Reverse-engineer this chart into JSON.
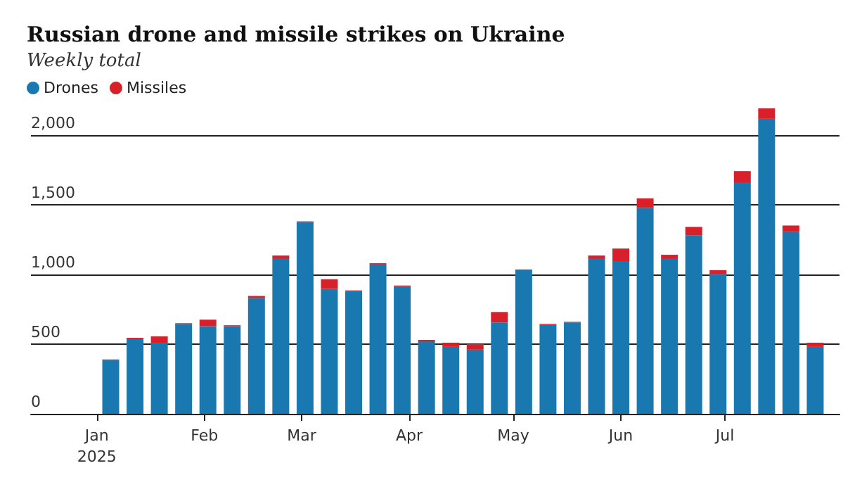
{
  "chart_data": {
    "type": "bar",
    "title": "Russian drone and missile strikes on Ukraine",
    "subtitle": "Weekly total",
    "x": [
      "2025-01-05",
      "2025-01-12",
      "2025-01-19",
      "2025-01-26",
      "2025-02-02",
      "2025-02-09",
      "2025-02-16",
      "2025-02-23",
      "2025-03-02",
      "2025-03-09",
      "2025-03-16",
      "2025-03-23",
      "2025-03-30",
      "2025-04-06",
      "2025-04-13",
      "2025-04-20",
      "2025-04-27",
      "2025-05-04",
      "2025-05-11",
      "2025-05-18",
      "2025-05-25",
      "2025-06-01",
      "2025-06-08",
      "2025-06-15",
      "2025-06-22",
      "2025-06-29",
      "2025-07-06",
      "2025-07-13",
      "2025-07-20",
      "2025-07-27"
    ],
    "stacked": true,
    "series": [
      {
        "name": "Drones",
        "color": "#1a78b0",
        "values": [
          385,
          540,
          505,
          645,
          630,
          630,
          830,
          1115,
          1375,
          895,
          880,
          1075,
          915,
          520,
          480,
          460,
          655,
          1030,
          640,
          655,
          1115,
          1095,
          1475,
          1115,
          1280,
          1000,
          1660,
          2115,
          1305,
          480
        ]
      },
      {
        "name": "Missiles",
        "color": "#d8202a",
        "values": [
          5,
          5,
          50,
          5,
          45,
          5,
          15,
          20,
          5,
          70,
          5,
          5,
          5,
          10,
          30,
          40,
          75,
          5,
          5,
          5,
          20,
          90,
          70,
          25,
          60,
          30,
          80,
          75,
          45,
          30
        ]
      }
    ],
    "xlim": [
      "2024-12-13",
      "2025-08-03"
    ],
    "xticks": [
      {
        "value": "2025-01-01",
        "label": "Jan\n2025"
      },
      {
        "value": "2025-02-01",
        "label": "Feb"
      },
      {
        "value": "2025-03-01",
        "label": "Mar"
      },
      {
        "value": "2025-04-01",
        "label": "Apr"
      },
      {
        "value": "2025-05-01",
        "label": "May"
      },
      {
        "value": "2025-06-01",
        "label": "Jun"
      },
      {
        "value": "2025-07-01",
        "label": "Jul"
      }
    ],
    "ylim": [
      0,
      2200
    ],
    "yticks": [
      0,
      {
        "value": 500,
        "label": "500"
      },
      {
        "value": 1000,
        "label": "1,000"
      },
      {
        "value": 1500,
        "label": "1,500"
      },
      {
        "value": 2000,
        "label": "2,000"
      }
    ],
    "grid": "y",
    "legend": "top left"
  }
}
